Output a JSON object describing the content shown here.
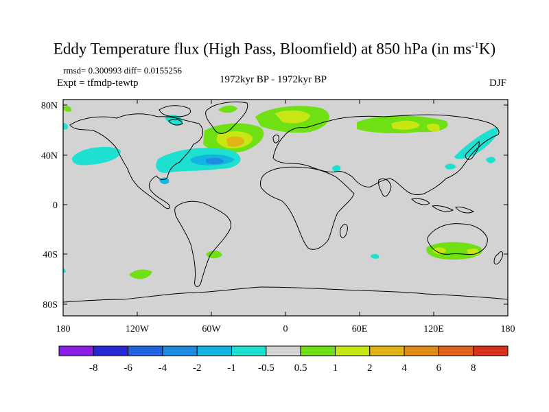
{
  "title_main": "Eddy Temperature flux (High Pass, Bloomfield) at 850 hPa (in ms",
  "title_exp": "-1",
  "title_end": "K)",
  "rmsd_line": "rmsd= 0.300993 diff= 0.0155256",
  "expt_line": "Expt = tfmdp-tewtp",
  "period": "1972kyr BP - 1972kyr BP",
  "season": "DJF",
  "map": {
    "ocean_land_fill": "#d3d3d3",
    "xticks": [
      "180",
      "120W",
      "60W",
      "0",
      "60E",
      "120E",
      "180"
    ],
    "yticks": [
      "80N",
      "40N",
      "0",
      "40S",
      "80S"
    ]
  },
  "colorbar": {
    "colors": [
      "#8a1ee6",
      "#2828d6",
      "#1e64e0",
      "#1e8cde",
      "#14b4e0",
      "#1ee0d0",
      "#d3d3d3",
      "#6ee014",
      "#c8e614",
      "#e0b414",
      "#e08c14",
      "#e0641e",
      "#d8321e"
    ],
    "labels": [
      "-8",
      "-6",
      "-4",
      "-2",
      "-1",
      "-0.5",
      "0.5",
      "1",
      "2",
      "4",
      "6",
      "8"
    ]
  }
}
